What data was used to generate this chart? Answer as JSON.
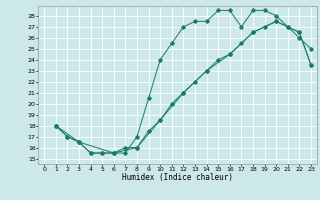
{
  "title": "",
  "xlabel": "Humidex (Indice chaleur)",
  "bg_color": "#cce8e8",
  "grid_color": "#ffffff",
  "line_color": "#1a7a6e",
  "xlim": [
    -0.5,
    23.5
  ],
  "ylim": [
    14.5,
    28.9
  ],
  "xticks": [
    0,
    1,
    2,
    3,
    4,
    5,
    6,
    7,
    8,
    9,
    10,
    11,
    12,
    13,
    14,
    15,
    16,
    17,
    18,
    19,
    20,
    21,
    22,
    23
  ],
  "yticks": [
    15,
    16,
    17,
    18,
    19,
    20,
    21,
    22,
    23,
    24,
    25,
    26,
    27,
    28
  ],
  "line1_x": [
    1,
    2,
    3,
    4,
    5,
    6,
    7,
    8,
    9,
    10,
    11,
    12,
    13,
    14,
    15,
    16,
    17,
    18,
    19,
    20,
    21,
    22,
    23
  ],
  "line1_y": [
    18,
    17,
    16.5,
    15.5,
    15.5,
    15.5,
    15.5,
    17,
    20.5,
    24,
    25.5,
    27,
    27.5,
    27.5,
    28.5,
    28.5,
    27,
    28.5,
    28.5,
    28,
    27,
    26,
    25
  ],
  "line2_x": [
    1,
    2,
    3,
    4,
    5,
    6,
    7,
    8,
    9,
    10,
    11,
    12,
    13,
    14,
    15,
    16,
    17,
    18,
    19,
    20,
    21,
    22,
    23
  ],
  "line2_y": [
    18,
    17,
    16.5,
    15.5,
    15.5,
    15.5,
    16,
    16,
    17.5,
    18.5,
    20,
    21,
    22,
    23,
    24,
    24.5,
    25.5,
    26.5,
    27,
    27.5,
    27,
    26.5,
    23.5
  ],
  "line3_x": [
    1,
    3,
    6,
    8,
    10,
    12,
    14,
    16,
    18,
    20,
    22,
    23
  ],
  "line3_y": [
    18,
    16.5,
    15.5,
    16,
    18.5,
    21,
    23,
    24.5,
    26.5,
    27.5,
    26.5,
    23.5
  ]
}
